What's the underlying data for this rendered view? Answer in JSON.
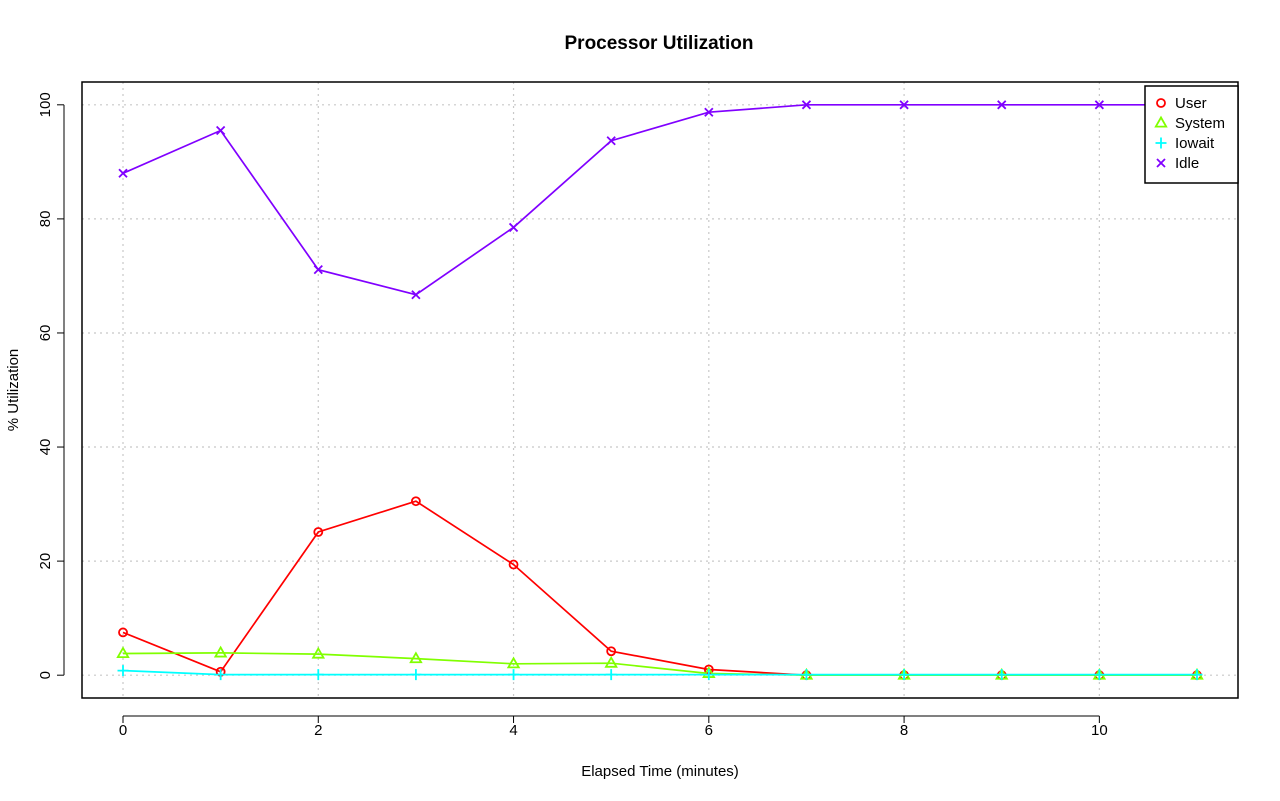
{
  "chart_data": {
    "type": "line",
    "title": "Processor Utilization",
    "xlabel": "Elapsed Time (minutes)",
    "ylabel": "% Utilization",
    "xlim": [
      -0.42,
      11.42
    ],
    "ylim": [
      -4,
      104
    ],
    "x_ticks": [
      0,
      2,
      4,
      6,
      8,
      10
    ],
    "y_ticks": [
      0,
      20,
      40,
      60,
      80,
      100
    ],
    "grid": true,
    "legend_position": "top-right",
    "x": [
      0,
      1,
      2,
      3,
      4,
      5,
      6,
      7,
      8,
      9,
      10,
      11
    ],
    "series": [
      {
        "name": "User",
        "color": "#ff0000",
        "marker": "circle",
        "values": [
          7.5,
          0.6,
          25.1,
          30.5,
          19.4,
          4.2,
          1.0,
          0,
          0,
          0,
          0,
          0
        ]
      },
      {
        "name": "System",
        "color": "#80ff00",
        "marker": "triangle",
        "values": [
          3.8,
          3.9,
          3.7,
          2.9,
          2.0,
          2.1,
          0.3,
          0,
          0,
          0,
          0,
          0
        ]
      },
      {
        "name": "Iowait",
        "color": "#00ffff",
        "marker": "plus",
        "values": [
          0.8,
          0.1,
          0.1,
          0.1,
          0.1,
          0.1,
          0.1,
          0.1,
          0.1,
          0.1,
          0.1,
          0.1
        ]
      },
      {
        "name": "Idle",
        "color": "#8000ff",
        "marker": "cross",
        "values": [
          88.0,
          95.5,
          71.1,
          66.7,
          78.5,
          93.7,
          98.7,
          100,
          100,
          100,
          100,
          100
        ]
      }
    ]
  }
}
